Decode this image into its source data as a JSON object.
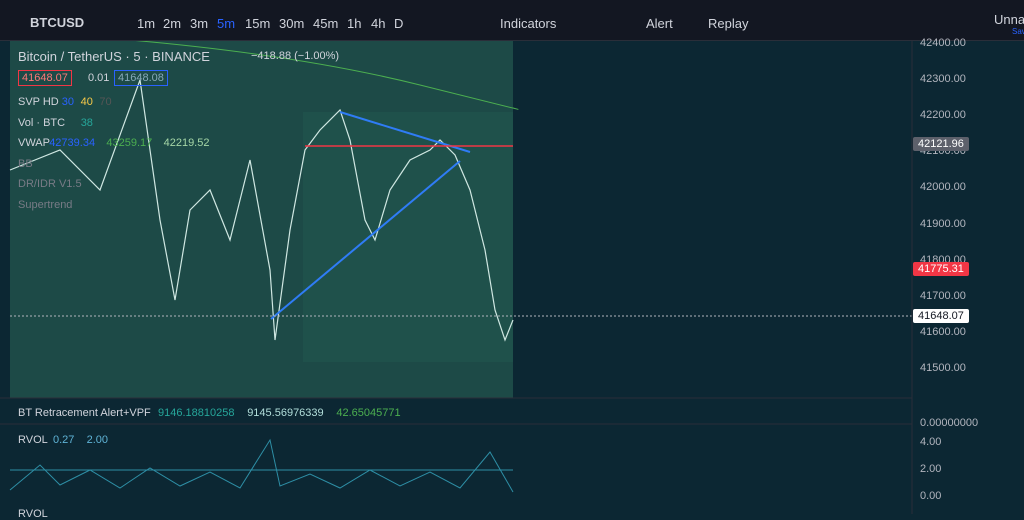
{
  "toolbar": {
    "symbol": "BTCUSD",
    "timeframes": [
      "1m",
      "2m",
      "3m",
      "5m",
      "15m",
      "30m",
      "45m",
      "1h",
      "4h",
      "D"
    ],
    "indicators": "Indicators",
    "alert": "Alert",
    "replay": "Replay",
    "layout_name": "Unnam",
    "save": "Sav"
  },
  "legend": {
    "title": "Bitcoin / TetherUS · 5 · BINANCE",
    "change": "−418.88 (−1.00%)",
    "bid": "41648.07",
    "spread": "0.01",
    "ask": "41648.08",
    "studies": [
      {
        "name": "SVP HD",
        "values": [
          "30",
          "40",
          "70"
        ]
      },
      {
        "name": "Vol · BTC",
        "values": [
          "38"
        ]
      },
      {
        "name": "VWAP",
        "values": [
          "42739.34",
          "43259.17",
          "42219.52"
        ]
      },
      {
        "name": "BB",
        "values": []
      },
      {
        "name": "DR/IDR V1.5",
        "values": []
      },
      {
        "name": "Supertrend",
        "values": []
      }
    ]
  },
  "price_axis": {
    "labels": [
      "42400.00",
      "42300.00",
      "42200.00",
      "42100.00",
      "42000.00",
      "41900.00",
      "41800.00",
      "41700.00",
      "41600.00",
      "41500.00"
    ],
    "marker_high": "42121.96",
    "marker_red": "41775.31",
    "marker_last": "41648.07"
  },
  "pane2": {
    "name": "BT Retracement Alert+VPF",
    "values": [
      "9146.18810258",
      "9145.56976339",
      "42.65045771"
    ],
    "axis": "0.00000000"
  },
  "pane3": {
    "name": "RVOL",
    "values": [
      "0.27",
      "2.00"
    ],
    "axis": [
      "4.00",
      "2.00",
      "0.00"
    ],
    "next": "RVOL"
  }
}
